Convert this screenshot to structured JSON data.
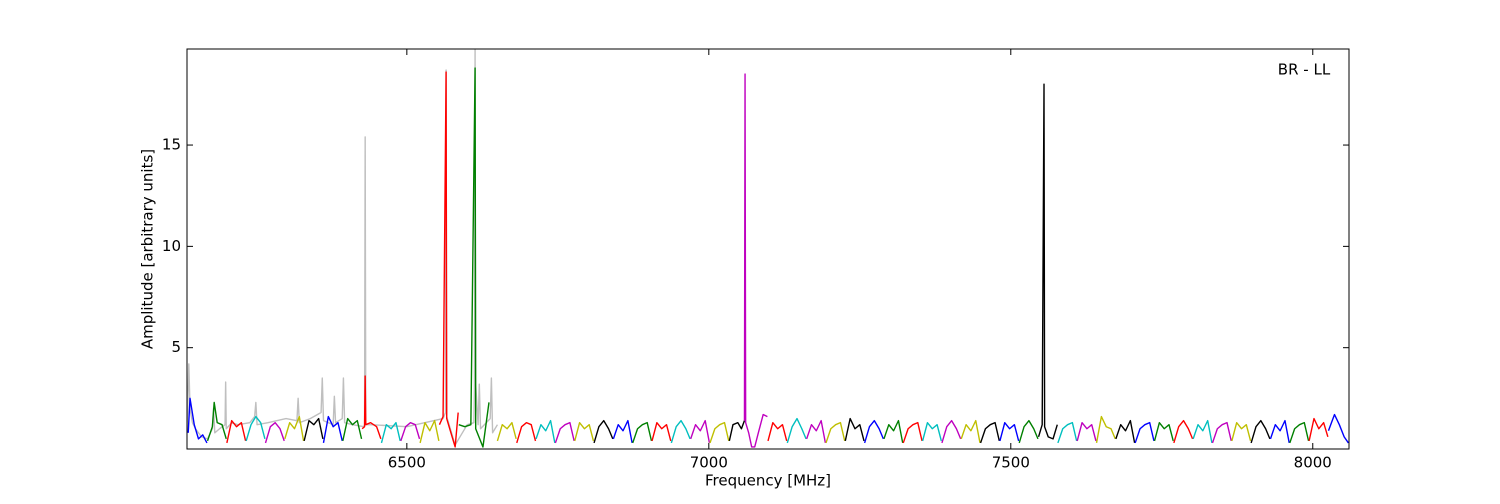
{
  "chart_data": {
    "type": "line",
    "annotation": "BR - LL",
    "xlabel": "Frequency [MHz]",
    "ylabel": "Amplitude [arbitrary units]",
    "xlim": [
      6136,
      8060
    ],
    "ylim": [
      0,
      19.74
    ],
    "xticks": [
      6500,
      7000,
      7500,
      8000
    ],
    "yticks": [
      5,
      10,
      15
    ],
    "grid": false,
    "series": [
      {
        "color": "#bfbfbf",
        "x": [
          6136,
          6139,
          6141,
          6145,
          6150,
          6160,
          6170,
          6178,
          6180,
          6182,
          6190,
          6199,
          6200,
          6201,
          6210,
          6220,
          6240,
          6248,
          6250,
          6252,
          6270,
          6300,
          6318,
          6320,
          6322,
          6340,
          6358,
          6360,
          6362,
          6378,
          6380,
          6382,
          6393,
          6395,
          6397,
          6410,
          6429,
          6430,
          6431,
          6432,
          6440,
          6500,
          6560,
          6564,
          6565,
          6566,
          6580,
          6600,
          6611,
          6612,
          6613,
          6614,
          6618,
          6620,
          6622,
          6638,
          6640,
          6642,
          6650
        ],
        "values": [
          0.8,
          4.2,
          2.0,
          1.3,
          1.0,
          0.6,
          0.5,
          1.0,
          2.0,
          0.8,
          1.0,
          1.2,
          3.3,
          1.0,
          1.3,
          1.2,
          1.3,
          1.6,
          2.3,
          1.2,
          1.3,
          1.5,
          1.4,
          2.5,
          1.3,
          1.5,
          1.8,
          3.5,
          1.4,
          1.2,
          2.6,
          1.3,
          1.5,
          3.5,
          1.3,
          1.2,
          1.1,
          1.2,
          15.4,
          1.2,
          1.2,
          1.1,
          1.5,
          1.8,
          18.7,
          1.6,
          0.2,
          1.2,
          1.3,
          3.0,
          19.74,
          3.2,
          1.2,
          3.2,
          1.0,
          1.5,
          3.5,
          0.8,
          1.2
        ]
      },
      {
        "color": "#0000ff",
        "x": [
          6138,
          6141,
          6148,
          6155,
          6162,
          6169
        ],
        "values": [
          0.8,
          2.5,
          1.2,
          0.5,
          0.7,
          0.3
        ]
      },
      {
        "color": "#008000",
        "x": [
          6170,
          6178,
          6181,
          6186,
          6194,
          6201
        ],
        "values": [
          0.4,
          1.1,
          2.3,
          1.3,
          1.2,
          0.5
        ]
      },
      {
        "color": "#ff0000",
        "x": [
          6202,
          6210,
          6218,
          6226,
          6233
        ],
        "values": [
          0.3,
          1.4,
          1.1,
          1.3,
          0.4
        ]
      },
      {
        "color": "#00bfbf",
        "x": [
          6234,
          6242,
          6250,
          6258,
          6265
        ],
        "values": [
          0.4,
          1.2,
          1.6,
          1.3,
          0.5
        ]
      },
      {
        "color": "#bf00bf",
        "x": [
          6266,
          6274,
          6282,
          6290,
          6297
        ],
        "values": [
          0.3,
          1.1,
          1.3,
          1.0,
          0.4
        ]
      },
      {
        "color": "#bfbf00",
        "x": [
          6298,
          6306,
          6314,
          6322,
          6329
        ],
        "values": [
          0.5,
          1.3,
          1.0,
          1.6,
          0.4
        ]
      },
      {
        "color": "#000000",
        "x": [
          6330,
          6338,
          6346,
          6354,
          6361
        ],
        "values": [
          0.4,
          1.4,
          1.2,
          1.5,
          0.5
        ]
      },
      {
        "color": "#0000ff",
        "x": [
          6362,
          6370,
          6378,
          6386,
          6393
        ],
        "values": [
          0.3,
          1.6,
          1.1,
          1.3,
          0.4
        ]
      },
      {
        "color": "#008000",
        "x": [
          6394,
          6402,
          6410,
          6418,
          6425
        ],
        "values": [
          0.4,
          1.5,
          1.2,
          1.4,
          0.5
        ]
      },
      {
        "color": "#ff0000",
        "x": [
          6426,
          6430,
          6431,
          6432,
          6440,
          6450,
          6457
        ],
        "values": [
          1.0,
          1.1,
          3.6,
          1.2,
          1.3,
          1.1,
          0.5
        ]
      },
      {
        "color": "#00bfbf",
        "x": [
          6458,
          6466,
          6474,
          6482,
          6489
        ],
        "values": [
          0.3,
          1.2,
          1.0,
          1.3,
          0.4
        ]
      },
      {
        "color": "#bf00bf",
        "x": [
          6490,
          6498,
          6506,
          6514,
          6521
        ],
        "values": [
          0.4,
          1.1,
          1.3,
          1.2,
          0.5
        ]
      },
      {
        "color": "#bfbf00",
        "x": [
          6522,
          6530,
          6538,
          6546,
          6553
        ],
        "values": [
          0.3,
          1.3,
          0.9,
          1.4,
          0.4
        ]
      },
      {
        "color": "#ff0000",
        "x": [
          6554,
          6560,
          6565,
          6566,
          6572,
          6580,
          6585
        ],
        "values": [
          1.2,
          1.6,
          18.6,
          1.5,
          0.9,
          0.1,
          1.8
        ]
      },
      {
        "color": "#008000",
        "x": [
          6586,
          6596,
          6606,
          6613,
          6614,
          6626,
          6636
        ],
        "values": [
          1.2,
          1.1,
          1.2,
          18.8,
          1.0,
          0.1,
          2.3
        ]
      },
      {
        "color": "#bfbf00",
        "x": [
          6650,
          6658,
          6666,
          6674,
          6681
        ],
        "values": [
          0.4,
          1.2,
          1.0,
          1.3,
          0.5
        ]
      },
      {
        "color": "#ff0000",
        "x": [
          6682,
          6690,
          6698,
          6706,
          6713
        ],
        "values": [
          0.3,
          1.1,
          1.3,
          1.2,
          0.4
        ]
      },
      {
        "color": "#00bfbf",
        "x": [
          6714,
          6722,
          6730,
          6738,
          6745
        ],
        "values": [
          0.5,
          1.2,
          0.9,
          1.4,
          0.3
        ]
      },
      {
        "color": "#bf00bf",
        "x": [
          6746,
          6754,
          6762,
          6770,
          6777
        ],
        "values": [
          0.3,
          1.0,
          1.2,
          1.3,
          0.4
        ]
      },
      {
        "color": "#bfbf00",
        "x": [
          6778,
          6786,
          6794,
          6802,
          6809
        ],
        "values": [
          0.4,
          1.3,
          1.0,
          1.2,
          0.4
        ]
      },
      {
        "color": "#000000",
        "x": [
          6810,
          6818,
          6826,
          6834,
          6841
        ],
        "values": [
          0.3,
          1.1,
          1.4,
          1.0,
          0.5
        ]
      },
      {
        "color": "#0000ff",
        "x": [
          6842,
          6850,
          6858,
          6866,
          6873
        ],
        "values": [
          0.5,
          1.2,
          0.9,
          1.4,
          0.3
        ]
      },
      {
        "color": "#008000",
        "x": [
          6874,
          6882,
          6890,
          6898,
          6905
        ],
        "values": [
          0.3,
          1.0,
          1.2,
          1.3,
          0.4
        ]
      },
      {
        "color": "#ff0000",
        "x": [
          6906,
          6914,
          6922,
          6930,
          6937
        ],
        "values": [
          0.4,
          1.3,
          1.0,
          1.2,
          0.4
        ]
      },
      {
        "color": "#00bfbf",
        "x": [
          6938,
          6946,
          6954,
          6962,
          6969
        ],
        "values": [
          0.3,
          1.1,
          1.4,
          1.0,
          0.5
        ]
      },
      {
        "color": "#bf00bf",
        "x": [
          6970,
          6978,
          6986,
          6994,
          7001
        ],
        "values": [
          0.5,
          1.2,
          0.9,
          1.4,
          0.3
        ]
      },
      {
        "color": "#bfbf00",
        "x": [
          7002,
          7010,
          7018,
          7026,
          7033
        ],
        "values": [
          0.3,
          1.0,
          1.2,
          1.3,
          0.4
        ]
      },
      {
        "color": "#000000",
        "x": [
          7034,
          7040,
          7048,
          7054,
          7059
        ],
        "values": [
          0.4,
          1.2,
          1.3,
          1.0,
          1.4
        ]
      },
      {
        "color": "#bf00bf",
        "x": [
          7059,
          7060,
          7061,
          7066,
          7071,
          7076,
          7082,
          7090,
          7097
        ],
        "values": [
          1.4,
          18.5,
          1.3,
          0.8,
          0.1,
          0.1,
          0.8,
          1.7,
          1.6
        ]
      },
      {
        "color": "#ff0000",
        "x": [
          7098,
          7106,
          7114,
          7122,
          7129
        ],
        "values": [
          0.4,
          1.3,
          1.0,
          1.2,
          0.4
        ]
      },
      {
        "color": "#00bfbf",
        "x": [
          7130,
          7138,
          7146,
          7154,
          7161
        ],
        "values": [
          0.3,
          1.1,
          1.5,
          1.0,
          0.5
        ]
      },
      {
        "color": "#bf00bf",
        "x": [
          7162,
          7170,
          7178,
          7186,
          7193
        ],
        "values": [
          0.5,
          1.2,
          0.9,
          1.4,
          0.3
        ]
      },
      {
        "color": "#bfbf00",
        "x": [
          7194,
          7202,
          7210,
          7218,
          7225
        ],
        "values": [
          0.3,
          1.0,
          1.2,
          1.3,
          0.4
        ]
      },
      {
        "color": "#000000",
        "x": [
          7226,
          7234,
          7242,
          7250,
          7257
        ],
        "values": [
          0.4,
          1.5,
          1.0,
          1.2,
          0.4
        ]
      },
      {
        "color": "#0000ff",
        "x": [
          7258,
          7266,
          7274,
          7282,
          7289
        ],
        "values": [
          0.3,
          1.1,
          1.4,
          1.0,
          0.5
        ]
      },
      {
        "color": "#008000",
        "x": [
          7290,
          7298,
          7306,
          7314,
          7321
        ],
        "values": [
          0.5,
          1.2,
          0.9,
          1.4,
          0.3
        ]
      },
      {
        "color": "#ff0000",
        "x": [
          7322,
          7330,
          7338,
          7346,
          7353
        ],
        "values": [
          0.3,
          1.0,
          1.2,
          1.3,
          0.4
        ]
      },
      {
        "color": "#00bfbf",
        "x": [
          7354,
          7362,
          7370,
          7378,
          7385
        ],
        "values": [
          0.4,
          1.3,
          1.0,
          1.2,
          0.4
        ]
      },
      {
        "color": "#bf00bf",
        "x": [
          7386,
          7394,
          7402,
          7410,
          7417
        ],
        "values": [
          0.3,
          1.1,
          1.4,
          1.0,
          0.5
        ]
      },
      {
        "color": "#bfbf00",
        "x": [
          7418,
          7426,
          7434,
          7442,
          7449
        ],
        "values": [
          0.5,
          1.2,
          0.9,
          1.4,
          0.3
        ]
      },
      {
        "color": "#000000",
        "x": [
          7450,
          7458,
          7466,
          7474,
          7481
        ],
        "values": [
          0.3,
          1.0,
          1.2,
          1.3,
          0.4
        ]
      },
      {
        "color": "#0000ff",
        "x": [
          7482,
          7490,
          7498,
          7506,
          7513
        ],
        "values": [
          0.4,
          1.3,
          1.0,
          1.2,
          0.4
        ]
      },
      {
        "color": "#008000",
        "x": [
          7514,
          7522,
          7530,
          7538,
          7545
        ],
        "values": [
          0.3,
          1.1,
          1.4,
          1.0,
          0.5
        ]
      },
      {
        "color": "#000000",
        "x": [
          7546,
          7552,
          7555,
          7556,
          7562,
          7570,
          7577
        ],
        "values": [
          0.6,
          1.2,
          18.0,
          1.1,
          0.6,
          0.5,
          1.2
        ]
      },
      {
        "color": "#00bfbf",
        "x": [
          7578,
          7586,
          7594,
          7602,
          7609
        ],
        "values": [
          0.3,
          1.0,
          1.2,
          1.3,
          0.4
        ]
      },
      {
        "color": "#bf00bf",
        "x": [
          7610,
          7618,
          7626,
          7634,
          7641
        ],
        "values": [
          0.4,
          1.3,
          1.0,
          1.2,
          0.4
        ]
      },
      {
        "color": "#bfbf00",
        "x": [
          7642,
          7650,
          7658,
          7666,
          7673
        ],
        "values": [
          0.3,
          1.6,
          1.1,
          1.0,
          0.5
        ]
      },
      {
        "color": "#000000",
        "x": [
          7674,
          7682,
          7690,
          7698,
          7705
        ],
        "values": [
          0.5,
          1.2,
          0.9,
          1.4,
          0.3
        ]
      },
      {
        "color": "#0000ff",
        "x": [
          7706,
          7714,
          7722,
          7730,
          7737
        ],
        "values": [
          0.3,
          1.0,
          1.2,
          1.3,
          0.4
        ]
      },
      {
        "color": "#008000",
        "x": [
          7738,
          7746,
          7754,
          7762,
          7769
        ],
        "values": [
          0.4,
          1.3,
          1.0,
          1.2,
          0.4
        ]
      },
      {
        "color": "#ff0000",
        "x": [
          7770,
          7778,
          7786,
          7794,
          7801
        ],
        "values": [
          0.3,
          1.1,
          1.4,
          1.0,
          0.5
        ]
      },
      {
        "color": "#00bfbf",
        "x": [
          7802,
          7810,
          7818,
          7826,
          7833
        ],
        "values": [
          0.5,
          1.2,
          0.9,
          1.4,
          0.3
        ]
      },
      {
        "color": "#bf00bf",
        "x": [
          7834,
          7842,
          7850,
          7858,
          7865
        ],
        "values": [
          0.3,
          1.0,
          1.2,
          1.3,
          0.4
        ]
      },
      {
        "color": "#bfbf00",
        "x": [
          7866,
          7874,
          7882,
          7890,
          7897
        ],
        "values": [
          0.4,
          1.3,
          1.0,
          1.2,
          0.4
        ]
      },
      {
        "color": "#000000",
        "x": [
          7898,
          7906,
          7914,
          7922,
          7929
        ],
        "values": [
          0.3,
          1.1,
          1.4,
          1.0,
          0.5
        ]
      },
      {
        "color": "#0000ff",
        "x": [
          7930,
          7938,
          7946,
          7954,
          7961
        ],
        "values": [
          0.5,
          1.2,
          0.9,
          1.4,
          0.3
        ]
      },
      {
        "color": "#008000",
        "x": [
          7962,
          7970,
          7978,
          7986,
          7993
        ],
        "values": [
          0.3,
          1.0,
          1.2,
          1.3,
          0.4
        ]
      },
      {
        "color": "#ff0000",
        "x": [
          7994,
          8002,
          8010,
          8018,
          8025
        ],
        "values": [
          0.4,
          1.5,
          1.0,
          1.3,
          0.6
        ]
      },
      {
        "color": "#0000ff",
        "x": [
          8026,
          8036,
          8044,
          8052,
          8059
        ],
        "values": [
          0.9,
          1.7,
          1.2,
          0.6,
          0.3
        ]
      }
    ]
  }
}
